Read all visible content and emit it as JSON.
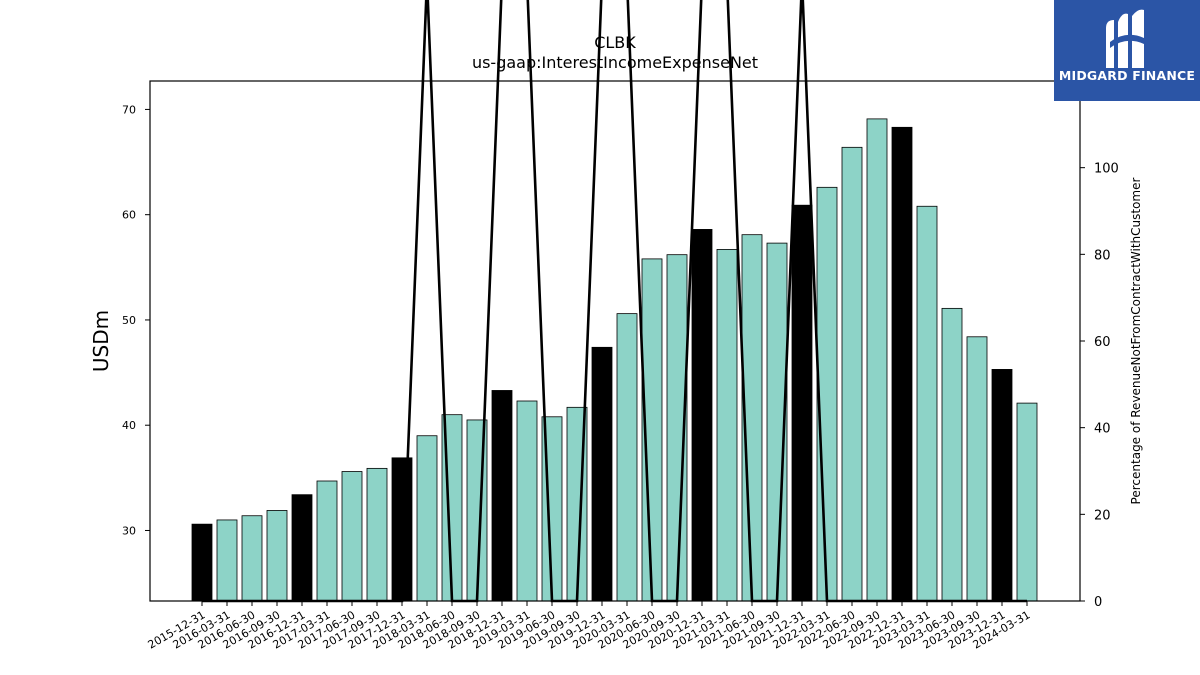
{
  "chart_data": {
    "type": "bar",
    "title": "CLBK",
    "subtitle": "us-gaap:InterestIncomeExpenseNet",
    "ylabel": "USDm",
    "y2label": "Percentage of RevenueNotFromContractWithCustomer",
    "ylim": [
      23.3,
      72.7
    ],
    "y2lim": [
      0,
      120
    ],
    "yticks": [
      30,
      40,
      50,
      60,
      70
    ],
    "y2ticks": [
      0,
      20,
      40,
      60,
      80,
      100
    ],
    "grid": false,
    "colors": {
      "quarterly": "#8dd3c7",
      "annual": "#000000",
      "edge": "#000000",
      "line": "#000000"
    },
    "categories": [
      "2015-12-31",
      "2016-03-31",
      "2016-06-30",
      "2016-09-30",
      "2016-12-31",
      "2017-03-31",
      "2017-06-30",
      "2017-09-30",
      "2017-12-31",
      "2018-03-31",
      "2018-06-30",
      "2018-09-30",
      "2018-12-31",
      "2019-03-31",
      "2019-06-30",
      "2019-09-30",
      "2019-12-31",
      "2020-03-31",
      "2020-06-30",
      "2020-09-30",
      "2020-12-31",
      "2021-03-31",
      "2021-06-30",
      "2021-09-30",
      "2021-12-31",
      "2022-03-31",
      "2022-06-30",
      "2022-09-30",
      "2022-12-31",
      "2023-03-31",
      "2023-06-30",
      "2023-09-30",
      "2023-12-31",
      "2024-03-31"
    ],
    "series": [
      {
        "values": [
          30.6,
          31.0,
          31.4,
          31.9,
          33.4,
          34.7,
          35.6,
          35.9,
          36.9,
          39.0,
          41.0,
          40.5,
          43.3,
          42.3,
          40.8,
          41.7,
          47.4,
          50.6,
          55.8,
          56.2,
          58.6,
          56.7,
          58.1,
          57.3,
          60.9,
          62.6,
          66.4,
          69.1,
          68.3,
          60.8,
          51.1,
          48.4,
          45.3,
          42.1
        ],
        "annual": [
          true,
          false,
          false,
          false,
          true,
          false,
          false,
          false,
          true,
          false,
          false,
          false,
          true,
          false,
          false,
          false,
          true,
          false,
          false,
          false,
          true,
          false,
          false,
          false,
          true,
          false,
          false,
          false,
          true,
          false,
          false,
          false,
          true,
          false
        ]
      },
      {
        "type": "line",
        "axis": "right",
        "values": [
          0,
          0,
          0,
          0,
          0,
          0,
          0,
          0,
          0,
          150,
          0,
          0,
          150,
          150,
          0,
          0,
          150,
          150,
          0,
          0,
          150,
          150,
          0,
          0,
          150,
          0,
          0,
          0,
          0,
          0,
          0,
          0,
          0,
          0
        ]
      }
    ]
  },
  "logo": {
    "text": "MIDGARD FINANCE",
    "icon": "midgard-logo-icon"
  }
}
